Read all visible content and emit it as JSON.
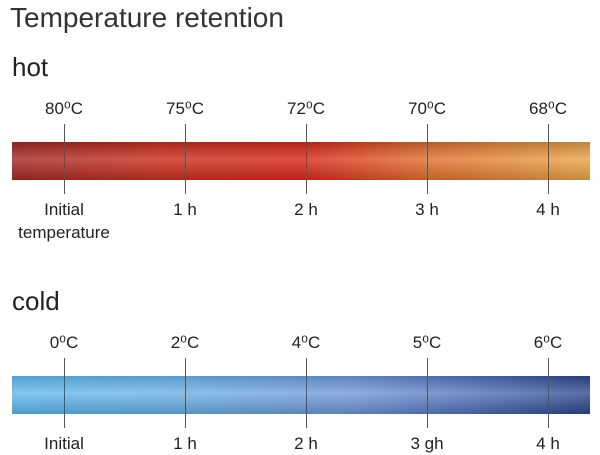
{
  "title": "Temperature retention",
  "sections": [
    {
      "label": "hot",
      "temperatures": [
        "80⁰C",
        "75⁰C",
        "72⁰C",
        "70⁰C",
        "68⁰C"
      ],
      "times": [
        "Initial temperature",
        "1 h",
        "2 h",
        "3 h",
        "4 h"
      ]
    },
    {
      "label": "cold",
      "temperatures": [
        "0⁰C",
        "2⁰C",
        "4⁰C",
        "5⁰C",
        "6⁰C"
      ],
      "times": [
        "Initial",
        "1 h",
        "2 h",
        "3 gh",
        "4 h"
      ]
    }
  ]
}
